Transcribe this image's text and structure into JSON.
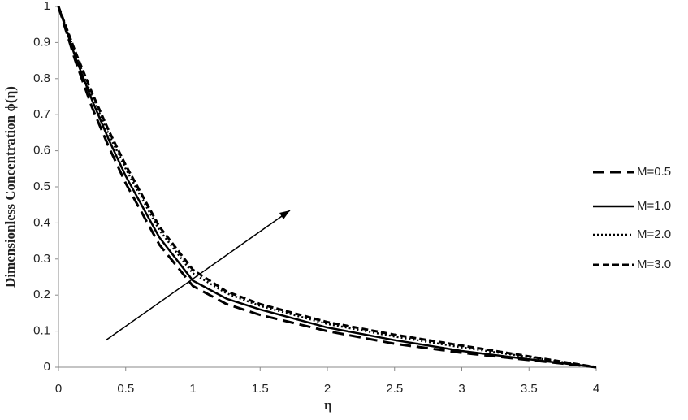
{
  "chart_data": {
    "type": "line",
    "x_label": "η",
    "y_label": "Dimensionless Concentration ϕ(η)",
    "x": [
      0,
      0.125,
      0.25,
      0.375,
      0.5,
      0.75,
      1,
      1.25,
      1.5,
      2,
      2.5,
      3,
      3.5,
      4
    ],
    "series": [
      {
        "name": "M=0.5",
        "color": "#000000",
        "dash": "14,7",
        "width": 3,
        "values": [
          1,
          0.85,
          0.72,
          0.61,
          0.51,
          0.34,
          0.225,
          0.175,
          0.145,
          0.1,
          0.065,
          0.04,
          0.02,
          0
        ]
      },
      {
        "name": "M=1.0",
        "color": "#000000",
        "dash": "none",
        "width": 2.5,
        "values": [
          1,
          0.86,
          0.74,
          0.63,
          0.53,
          0.36,
          0.24,
          0.19,
          0.16,
          0.11,
          0.075,
          0.045,
          0.022,
          0
        ]
      },
      {
        "name": "M=2.0",
        "color": "#000000",
        "dash": "2,3",
        "width": 2.5,
        "values": [
          1,
          0.87,
          0.75,
          0.645,
          0.55,
          0.38,
          0.26,
          0.205,
          0.17,
          0.12,
          0.085,
          0.055,
          0.028,
          0
        ]
      },
      {
        "name": "M=3.0",
        "color": "#000000",
        "dash": "8,4",
        "width": 3,
        "values": [
          1,
          0.875,
          0.76,
          0.655,
          0.56,
          0.39,
          0.27,
          0.21,
          0.175,
          0.125,
          0.09,
          0.06,
          0.03,
          0
        ]
      }
    ],
    "xlim": [
      0,
      4
    ],
    "xticks": [
      0,
      0.5,
      1,
      1.5,
      2,
      2.5,
      3,
      3.5,
      4
    ],
    "ylim": [
      0,
      1
    ],
    "yticks": [
      0,
      0.1,
      0.2,
      0.3,
      0.4,
      0.5,
      0.6,
      0.7,
      0.8,
      0.9,
      1
    ],
    "grid": false,
    "legend": "right"
  }
}
